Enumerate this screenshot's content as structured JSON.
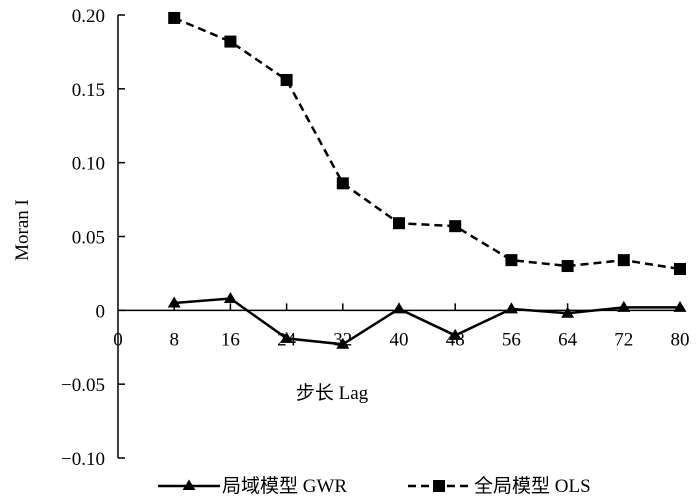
{
  "chart_data": {
    "type": "line",
    "title": "",
    "xlabel": "步长 Lag",
    "ylabel": "Moran I",
    "xlim": [
      0,
      80
    ],
    "ylim": [
      -0.1,
      0.2
    ],
    "x_ticks": [
      0,
      8,
      16,
      24,
      32,
      40,
      48,
      56,
      64,
      72,
      80
    ],
    "x_tick_labels": [
      "0",
      "8",
      "16",
      "24",
      "32",
      "40",
      "48",
      "56",
      "64",
      "72",
      "80"
    ],
    "y_ticks": [
      0.2,
      0.15,
      0.1,
      0.05,
      0,
      -0.05,
      -0.1
    ],
    "y_tick_labels": [
      "0.20",
      "0.15",
      "0.10",
      "0.05",
      "0",
      "−0.05",
      "−0.10"
    ],
    "x": [
      8,
      16,
      24,
      32,
      40,
      48,
      56,
      64,
      72,
      80
    ],
    "series": [
      {
        "name": "局域模型 GWR",
        "marker": "triangle",
        "line": "solid",
        "values": [
          0.005,
          0.008,
          -0.019,
          -0.023,
          0.001,
          -0.017,
          0.001,
          -0.002,
          0.002,
          0.002
        ]
      },
      {
        "name": "全局模型 OLS",
        "marker": "square",
        "line": "dashed",
        "values": [
          0.198,
          0.182,
          0.156,
          0.086,
          0.059,
          0.057,
          0.034,
          0.03,
          0.034,
          0.028
        ]
      }
    ],
    "grid": false,
    "legend_position": "bottom"
  }
}
